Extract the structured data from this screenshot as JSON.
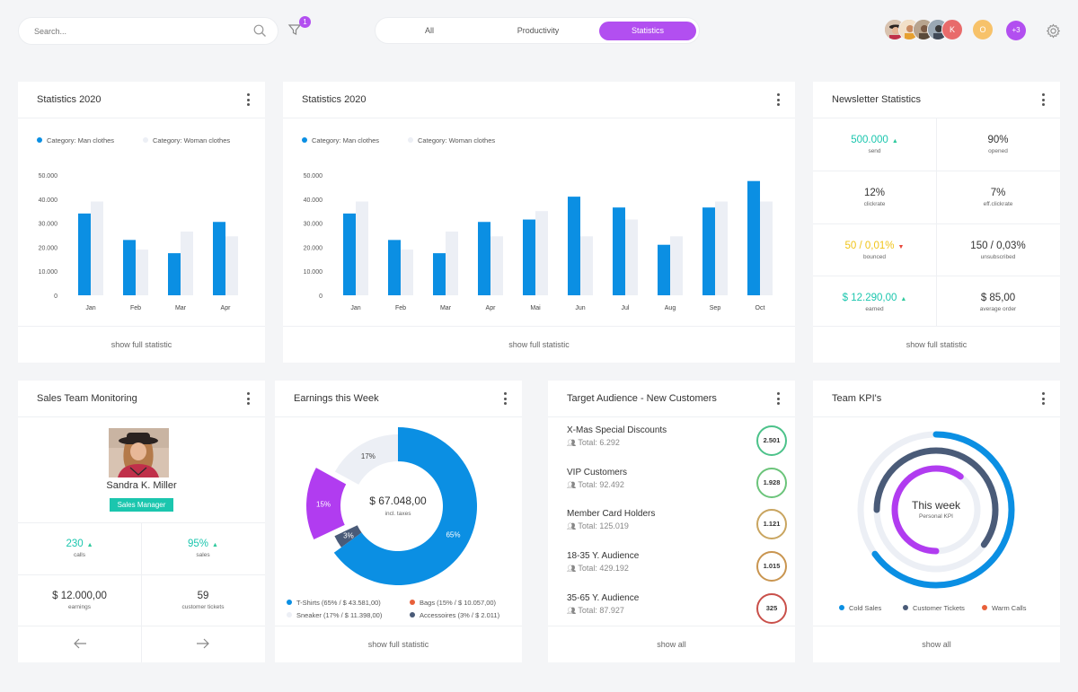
{
  "search": {
    "placeholder": "Search..."
  },
  "filter": {
    "badge": "1"
  },
  "tabs": [
    {
      "label": "All",
      "active": false
    },
    {
      "label": "Productivity",
      "active": false
    },
    {
      "label": "Statistics",
      "active": true
    }
  ],
  "team": {
    "initials": [
      "K",
      "O"
    ],
    "more": "+3"
  },
  "colors": {
    "accent": "#b24ff0",
    "blue": "#0b8fe3",
    "light": "#eceff5",
    "green": "#2fc99d",
    "yellow": "#f0c419",
    "red": "#e8473a",
    "teal": "#1bc6ae"
  },
  "stats_small": {
    "title": "Statistics 2020",
    "legend": [
      "Category: Man clothes",
      "Category: Woman clothes"
    ],
    "footer": "show full statistic",
    "chart_data": {
      "type": "bar",
      "categories": [
        "Jan",
        "Feb",
        "Mar",
        "Apr"
      ],
      "series": [
        {
          "name": "Category: Man clothes",
          "values": [
            34000,
            23000,
            17500,
            30500
          ]
        },
        {
          "name": "Category: Woman clothes",
          "values": [
            39000,
            19000,
            26500,
            24500
          ]
        }
      ],
      "yticks": [
        "50.000",
        "40.000",
        "30.000",
        "20.000",
        "10.000",
        "0"
      ],
      "ylim": [
        0,
        50000
      ]
    }
  },
  "stats_large": {
    "title": "Statistics 2020",
    "legend": [
      "Category: Man clothes",
      "Category: Woman clothes"
    ],
    "footer": "show full statistic",
    "chart_data": {
      "type": "bar",
      "categories": [
        "Jan",
        "Feb",
        "Mar",
        "Apr",
        "Mai",
        "Jun",
        "Jul",
        "Aug",
        "Sep",
        "Oct"
      ],
      "series": [
        {
          "name": "Category: Man clothes",
          "values": [
            34000,
            23000,
            17500,
            30500,
            31500,
            41000,
            36500,
            21000,
            36500,
            47500
          ]
        },
        {
          "name": "Category: Woman clothes",
          "values": [
            39000,
            19000,
            26500,
            24500,
            35000,
            24500,
            31500,
            24500,
            39000,
            39000
          ]
        }
      ],
      "yticks": [
        "50.000",
        "40.000",
        "30.000",
        "20.000",
        "10.000",
        "0"
      ],
      "ylim": [
        0,
        50000
      ]
    }
  },
  "newsletter": {
    "title": "Newsletter Statistics",
    "footer": "show full statistic",
    "cells": [
      {
        "value": "500.000",
        "label": "send",
        "color": "#1bc6ae",
        "trend": "up"
      },
      {
        "value": "90%",
        "label": "opened",
        "color": "#333333",
        "trend": ""
      },
      {
        "value": "12%",
        "label": "clickrate",
        "color": "#333333",
        "trend": ""
      },
      {
        "value": "7%",
        "label": "eff.clickrate",
        "color": "#333333",
        "trend": ""
      },
      {
        "value": "50 / 0,01%",
        "label": "bounced",
        "color": "#f0c419",
        "trend": "down"
      },
      {
        "value": "150 / 0,03%",
        "label": "unsubscribed",
        "color": "#333333",
        "trend": ""
      },
      {
        "value": "$ 12.290,00",
        "label": "earned",
        "color": "#1bc6ae",
        "trend": "up"
      },
      {
        "value": "$ 85,00",
        "label": "average order",
        "color": "#333333",
        "trend": ""
      }
    ]
  },
  "sales_team": {
    "title": "Sales Team Monitoring",
    "name": "Sandra K. Miller",
    "role": "Sales Manager",
    "calls_value": "230",
    "calls_label": "calls",
    "sales_value": "95%",
    "sales_label": "sales",
    "earnings_value": "$ 12.000,00",
    "earnings_label": "earnings",
    "tickets_value": "59",
    "tickets_label": "customer tickets"
  },
  "earnings": {
    "title": "Earnings this Week",
    "center_value": "$ 67.048,00",
    "center_label": "incl. taxes",
    "chart_data": {
      "type": "pie",
      "slices": [
        {
          "label": "T-Shirts (65% / $ 43.581,00)",
          "pct": 65,
          "display": "65%",
          "color": "#0b8fe3"
        },
        {
          "label": "Accessoires (3% / $ 2.011)",
          "pct": 3,
          "display": "3%",
          "color": "#4a5b78"
        },
        {
          "label": "Bags (15% / $ 10.057,00)",
          "pct": 15,
          "display": "15%",
          "color": "#b13cf0"
        },
        {
          "label": "Sneaker (17% / $ 11.398,00)",
          "pct": 17,
          "display": "17%",
          "color": "#eceff5"
        }
      ]
    },
    "legend_order": [
      0,
      2,
      3,
      1
    ],
    "legend_dot_colors": [
      "#0b8fe3",
      "#e8603a",
      "#eceff5",
      "#4a5b78"
    ],
    "footer": "show full statistic"
  },
  "audience": {
    "title": "Target Audience - New Customers",
    "footer": "show all",
    "items": [
      {
        "name": "X-Mas Special Discounts",
        "total": "Total: 6.292",
        "count": "2.501",
        "color": "#4cc28a"
      },
      {
        "name": "VIP Customers",
        "total": "Total: 92.492",
        "count": "1.928",
        "color": "#6bc47a"
      },
      {
        "name": "Member Card Holders",
        "total": "Total: 125.019",
        "count": "1.121",
        "color": "#c9a560"
      },
      {
        "name": "18-35 Y. Audience",
        "total": "Total: 429.192",
        "count": "1.015",
        "color": "#c99550"
      },
      {
        "name": "35-65 Y. Audience",
        "total": "Total: 87.927",
        "count": "325",
        "color": "#c9504a"
      }
    ]
  },
  "kpi": {
    "title": "Team KPI's",
    "center_title": "This week",
    "center_label": "Personal KPI",
    "legend": [
      {
        "label": "Cold Sales",
        "color": "#0b8fe3"
      },
      {
        "label": "Customer Tickets",
        "color": "#4a5b78"
      },
      {
        "label": "Warm Calls",
        "color": "#e8603a"
      }
    ],
    "rings": [
      {
        "name": "Cold Sales",
        "value": 0.65,
        "color": "#0b8fe3"
      },
      {
        "name": "Customer Tickets",
        "value": 0.6,
        "color": "#4a5b78"
      },
      {
        "name": "Warm Calls",
        "value": 0.6,
        "color": "#b13cf0"
      }
    ],
    "footer": "show all"
  }
}
